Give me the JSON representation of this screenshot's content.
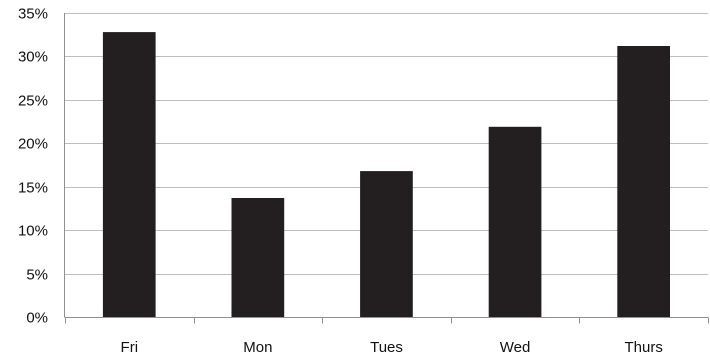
{
  "chart_data": {
    "type": "bar",
    "categories": [
      "Fri",
      "Mon",
      "Tues",
      "Wed",
      "Thurs"
    ],
    "values": [
      32.8,
      13.7,
      16.8,
      21.9,
      31.2
    ],
    "y_tick_labels": [
      "0%",
      "5%",
      "10%",
      "15%",
      "20%",
      "25%",
      "30%",
      "35%"
    ],
    "y_ticks": [
      0,
      5,
      10,
      15,
      20,
      25,
      30,
      35
    ],
    "ylim": [
      0,
      35
    ],
    "title": "",
    "xlabel": "",
    "ylabel": "",
    "grid": true,
    "legend": "none",
    "bar_color": "#231f20"
  }
}
